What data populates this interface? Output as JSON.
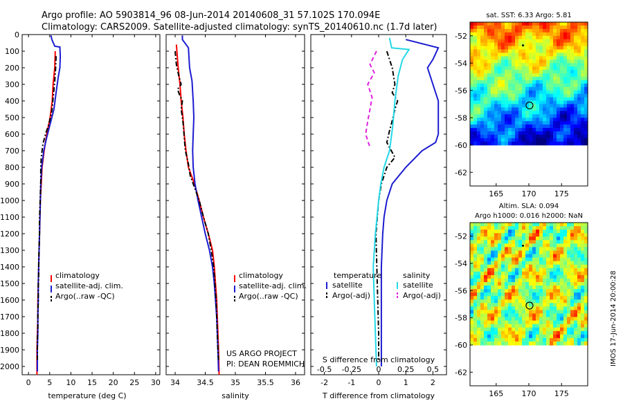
{
  "header": {
    "line1": "Argo profile: AO 5903814_96 08-Jun-2014 20140608_31 57.102S 170.094E",
    "line2": "Climatology: CARS2009. Satellite-adjusted climatology: synTS_20140610.nc (1.7d later)"
  },
  "credits": {
    "project": "US ARGO PROJECT",
    "pi": "PI: DEAN ROEMMICH",
    "imos": "IMOS 17-Jun-2014 20:00:28"
  },
  "colors": {
    "climatology": "#ff0000",
    "satellite": "#1a1ad0",
    "argo": "#000000",
    "salinity_sat": "#22d8e6",
    "salinity_argo": "#e020e0"
  },
  "chart_data": [
    {
      "type": "line",
      "id": "temperature",
      "xlabel": "temperature (deg C)",
      "ylabel": "",
      "xlim": [
        -1.5,
        31
      ],
      "ylim": [
        2050,
        0
      ],
      "y_reversed": true,
      "xticks": [
        0,
        5,
        10,
        15,
        20,
        25,
        30
      ],
      "yticks": [
        0,
        100,
        200,
        300,
        400,
        500,
        600,
        700,
        800,
        900,
        1000,
        1100,
        1200,
        1300,
        1400,
        1500,
        1600,
        1700,
        1800,
        1900,
        2000
      ],
      "legend": [
        "climatology",
        "satellite-adj. clim.",
        "Argo(..raw -QC)"
      ],
      "series": [
        {
          "name": "climatology",
          "color": "#ff0000",
          "dash": "solid",
          "points": [
            [
              6.3,
              100
            ],
            [
              6.2,
              200
            ],
            [
              5.8,
              300
            ],
            [
              5.6,
              400
            ],
            [
              5.1,
              500
            ],
            [
              4.3,
              600
            ],
            [
              3.7,
              700
            ],
            [
              3.2,
              800
            ],
            [
              3.0,
              900
            ],
            [
              2.8,
              1000
            ],
            [
              2.7,
              1100
            ],
            [
              2.6,
              1200
            ],
            [
              2.5,
              1300
            ],
            [
              2.4,
              1400
            ],
            [
              2.3,
              1500
            ],
            [
              2.2,
              1600
            ],
            [
              2.2,
              1700
            ],
            [
              2.1,
              1800
            ],
            [
              2.0,
              1900
            ],
            [
              2.0,
              2050
            ]
          ]
        },
        {
          "name": "satellite-adj. clim.",
          "color": "#1a1ad0",
          "dash": "solid",
          "points": [
            [
              5.3,
              5
            ],
            [
              5.5,
              30
            ],
            [
              6.2,
              70
            ],
            [
              7.4,
              75
            ],
            [
              7.5,
              130
            ],
            [
              7.4,
              200
            ],
            [
              7.0,
              260
            ],
            [
              6.5,
              350
            ],
            [
              6.0,
              450
            ],
            [
              5.0,
              550
            ],
            [
              4.3,
              620
            ],
            [
              3.6,
              700
            ],
            [
              3.1,
              800
            ],
            [
              2.9,
              900
            ],
            [
              2.8,
              1000
            ],
            [
              2.7,
              1100
            ],
            [
              2.6,
              1200
            ],
            [
              2.5,
              1300
            ],
            [
              2.4,
              1400
            ],
            [
              2.3,
              1500
            ],
            [
              2.3,
              1600
            ],
            [
              2.2,
              1700
            ],
            [
              2.2,
              1800
            ],
            [
              2.1,
              1900
            ],
            [
              2.1,
              2030
            ]
          ]
        },
        {
          "name": "Argo(..raw -QC)",
          "color": "#000000",
          "dash": "dashdot",
          "points": [
            [
              6.5,
              130
            ],
            [
              6.4,
              200
            ],
            [
              6.2,
              280
            ],
            [
              5.9,
              360
            ],
            [
              5.5,
              460
            ],
            [
              4.8,
              540
            ],
            [
              4.0,
              600
            ],
            [
              3.4,
              660
            ],
            [
              3.0,
              740
            ],
            [
              2.9,
              800
            ],
            [
              2.9,
              880
            ],
            [
              2.8,
              960
            ],
            [
              2.7,
              1040
            ],
            [
              2.6,
              1120
            ],
            [
              2.6,
              1200
            ],
            [
              2.5,
              1280
            ],
            [
              2.4,
              1360
            ],
            [
              2.4,
              1440
            ],
            [
              2.3,
              1520
            ],
            [
              2.3,
              1600
            ],
            [
              2.2,
              1680
            ],
            [
              2.2,
              1760
            ],
            [
              2.1,
              1840
            ],
            [
              2.1,
              1920
            ],
            [
              2.1,
              1960
            ]
          ]
        }
      ]
    },
    {
      "type": "line",
      "id": "salinity",
      "xlabel": "salinity",
      "ylabel": "",
      "xlim": [
        33.85,
        36.15
      ],
      "ylim": [
        2050,
        0
      ],
      "y_reversed": true,
      "xticks": [
        34,
        34.5,
        35,
        35.5,
        36
      ],
      "xticklabels": [
        "34",
        "34.5",
        "35",
        "35.5",
        "36"
      ],
      "legend": [
        "climatology",
        "satellite-adj. clim.",
        "Argo(..raw -QC)"
      ],
      "series": [
        {
          "name": "climatology",
          "color": "#ff0000",
          "dash": "solid",
          "points": [
            [
              34.02,
              60
            ],
            [
              34.05,
              200
            ],
            [
              34.08,
              300
            ],
            [
              34.1,
              400
            ],
            [
              34.13,
              500
            ],
            [
              34.15,
              600
            ],
            [
              34.18,
              700
            ],
            [
              34.22,
              800
            ],
            [
              34.32,
              900
            ],
            [
              34.4,
              1000
            ],
            [
              34.47,
              1100
            ],
            [
              34.55,
              1200
            ],
            [
              34.62,
              1300
            ],
            [
              34.65,
              1400
            ],
            [
              34.67,
              1500
            ],
            [
              34.69,
              1600
            ],
            [
              34.7,
              1700
            ],
            [
              34.71,
              1800
            ],
            [
              34.72,
              1900
            ],
            [
              34.73,
              2050
            ]
          ]
        },
        {
          "name": "satellite-adj. clim.",
          "color": "#1a1ad0",
          "dash": "solid",
          "points": [
            [
              34.12,
              5
            ],
            [
              34.12,
              30
            ],
            [
              34.22,
              80
            ],
            [
              34.24,
              200
            ],
            [
              34.28,
              280
            ],
            [
              34.3,
              400
            ],
            [
              34.31,
              500
            ],
            [
              34.3,
              600
            ],
            [
              34.29,
              700
            ],
            [
              34.3,
              800
            ],
            [
              34.33,
              900
            ],
            [
              34.38,
              1000
            ],
            [
              34.44,
              1100
            ],
            [
              34.5,
              1200
            ],
            [
              34.57,
              1300
            ],
            [
              34.62,
              1400
            ],
            [
              34.65,
              1500
            ],
            [
              34.67,
              1600
            ],
            [
              34.69,
              1700
            ],
            [
              34.7,
              1800
            ],
            [
              34.71,
              1900
            ],
            [
              34.72,
              2030
            ]
          ]
        },
        {
          "name": "Argo(..raw -QC)",
          "color": "#000000",
          "dash": "dashdot",
          "points": [
            [
              34.0,
              100
            ],
            [
              34.02,
              180
            ],
            [
              34.06,
              250
            ],
            [
              34.1,
              300
            ],
            [
              34.04,
              330
            ],
            [
              34.07,
              360
            ],
            [
              34.12,
              400
            ],
            [
              34.1,
              450
            ],
            [
              34.12,
              500
            ],
            [
              34.14,
              560
            ],
            [
              34.15,
              620
            ],
            [
              34.17,
              700
            ],
            [
              34.22,
              780
            ],
            [
              34.25,
              850
            ],
            [
              34.32,
              920
            ],
            [
              34.4,
              1000
            ],
            [
              34.47,
              1100
            ],
            [
              34.55,
              1200
            ],
            [
              34.6,
              1300
            ],
            [
              34.64,
              1400
            ],
            [
              34.66,
              1500
            ],
            [
              34.68,
              1600
            ],
            [
              34.69,
              1700
            ],
            [
              34.7,
              1800
            ],
            [
              34.71,
              1900
            ],
            [
              34.72,
              1960
            ]
          ]
        }
      ]
    },
    {
      "type": "line",
      "id": "difference",
      "xlabel": "T difference from climatology",
      "ylabel": "",
      "xlim": [
        -2.5,
        2.5
      ],
      "ylim": [
        2050,
        0
      ],
      "y_reversed": true,
      "xticks": [
        -2,
        -1,
        0,
        1,
        2
      ],
      "secondary_xlabel": "S difference from climatology",
      "secondary_xticks": [
        -0.5,
        -0.25,
        0,
        0.25,
        0.5
      ],
      "secondary_xticklabels": [
        "-0.5",
        "-0.25",
        "0",
        "0.25",
        "0.5"
      ],
      "legend_groups": [
        {
          "title": "temperature",
          "entries": [
            "satellite",
            "Argo(-adj)"
          ]
        },
        {
          "title": "salinity",
          "entries": [
            "satellite",
            "Argo(-adj)"
          ]
        }
      ],
      "series": [
        {
          "name": "satellite",
          "group": "temperature",
          "color": "#1a1ad0",
          "dash": "solid",
          "points": [
            [
              1.0,
              30
            ],
            [
              2.2,
              80
            ],
            [
              2.0,
              150
            ],
            [
              1.8,
              200
            ],
            [
              2.0,
              300
            ],
            [
              2.1,
              350
            ],
            [
              2.2,
              400
            ],
            [
              2.2,
              500
            ],
            [
              2.2,
              600
            ],
            [
              2.1,
              650
            ],
            [
              1.6,
              700
            ],
            [
              1.0,
              800
            ],
            [
              0.5,
              900
            ],
            [
              0.3,
              1000
            ],
            [
              0.2,
              1100
            ],
            [
              0.15,
              1200
            ],
            [
              0.1,
              1400
            ],
            [
              0.1,
              1600
            ],
            [
              0.1,
              1800
            ],
            [
              0.1,
              2000
            ]
          ]
        },
        {
          "name": "Argo(-adj)",
          "group": "temperature",
          "color": "#000000",
          "dash": "dashdot",
          "points": [
            [
              0.3,
              100
            ],
            [
              0.5,
              200
            ],
            [
              0.6,
              300
            ],
            [
              0.5,
              350
            ],
            [
              0.7,
              400
            ],
            [
              0.6,
              450
            ],
            [
              0.5,
              520
            ],
            [
              0.4,
              580
            ],
            [
              0.3,
              650
            ],
            [
              0.6,
              740
            ],
            [
              0.3,
              800
            ],
            [
              0.1,
              900
            ],
            [
              0.0,
              1000
            ],
            [
              -0.1,
              1200
            ],
            [
              -0.05,
              1500
            ],
            [
              0.0,
              1800
            ],
            [
              0.0,
              1960
            ]
          ]
        },
        {
          "name": "satellite",
          "group": "salinity",
          "color": "#22d8e6",
          "dash": "solid",
          "points": [
            [
              0.1,
              20
            ],
            [
              0.12,
              80
            ],
            [
              0.28,
              90
            ],
            [
              0.22,
              150
            ],
            [
              0.18,
              250
            ],
            [
              0.15,
              400
            ],
            [
              0.13,
              550
            ],
            [
              0.1,
              700
            ],
            [
              0.05,
              800
            ],
            [
              0.02,
              900
            ],
            [
              0.0,
              1000
            ],
            [
              -0.03,
              1200
            ],
            [
              -0.05,
              1400
            ],
            [
              -0.04,
              1600
            ],
            [
              -0.03,
              1800
            ],
            [
              -0.02,
              2000
            ]
          ]
        },
        {
          "name": "Argo(-adj)",
          "group": "salinity",
          "color": "#e020e0",
          "dash": "dashed",
          "points": [
            [
              -0.02,
              100
            ],
            [
              -0.08,
              180
            ],
            [
              -0.04,
              230
            ],
            [
              -0.1,
              300
            ],
            [
              -0.06,
              380
            ],
            [
              -0.08,
              450
            ],
            [
              -0.1,
              520
            ],
            [
              -0.12,
              600
            ],
            [
              -0.08,
              680
            ]
          ]
        }
      ]
    },
    {
      "type": "heatmap",
      "id": "sst_map",
      "title": "sat. SST: 6.33 Argo: 5.81",
      "xlim": [
        161,
        179
      ],
      "ylim": [
        -63,
        -51
      ],
      "xticks": [
        165,
        170,
        175
      ],
      "yticks": [
        -52,
        -54,
        -56,
        -58,
        -60,
        -62
      ],
      "argo_position": [
        170.1,
        -57.1
      ],
      "track_point": [
        169.1,
        -52.7
      ]
    },
    {
      "type": "heatmap",
      "id": "sla_map",
      "title": "Altim. SLA: 0.094",
      "subtitle": "Argo h1000: 0.016 h2000: NaN",
      "xlim": [
        161,
        179
      ],
      "ylim": [
        -63,
        -51
      ],
      "xticks": [
        165,
        170,
        175
      ],
      "yticks": [
        -52,
        -54,
        -56,
        -58,
        -60,
        -62
      ],
      "argo_position": [
        170.1,
        -57.1
      ],
      "track_point": [
        169.1,
        -52.7
      ]
    }
  ]
}
